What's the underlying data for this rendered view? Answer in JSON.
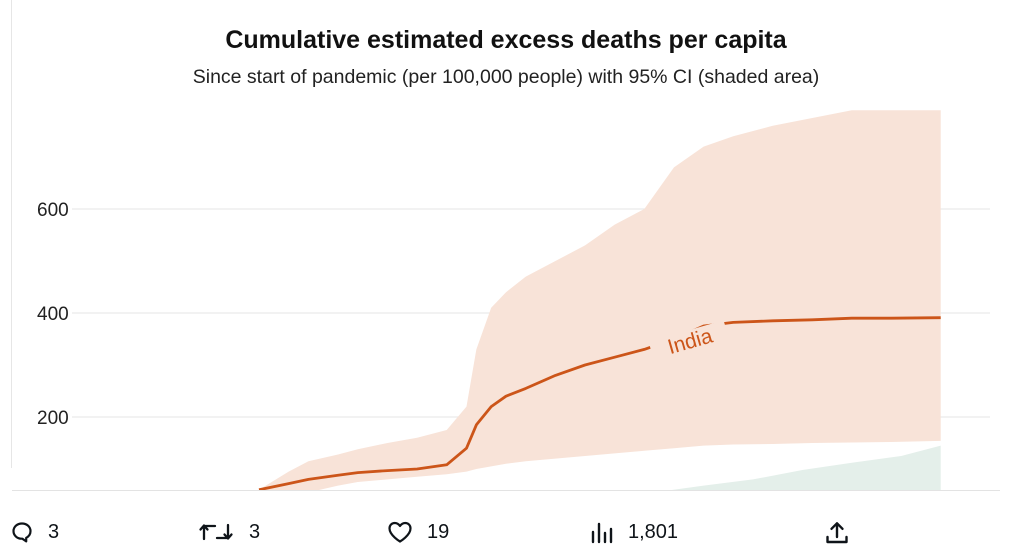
{
  "chart_data": {
    "type": "area",
    "title": "Cumulative estimated excess deaths per capita",
    "subtitle": "Since start of pandemic (per 100,000 people) with 95% CI (shaded area)",
    "y_ticks": [
      "200",
      "400",
      "600"
    ],
    "y_tick_values": [
      200,
      400,
      600
    ],
    "ylim": [
      -30,
      770
    ],
    "grid": true,
    "series": [
      {
        "name": "India",
        "color": "#cc5519",
        "band_color": "#f8e3d8",
        "x": [
          0.25,
          0.28,
          0.3,
          0.33,
          0.35,
          0.38,
          0.41,
          0.44,
          0.46,
          0.47,
          0.485,
          0.5,
          0.52,
          0.55,
          0.58,
          0.61,
          0.64,
          0.67,
          0.7,
          0.73,
          0.77,
          0.81,
          0.85,
          0.89,
          0.94
        ],
        "values": [
          60,
          72,
          80,
          88,
          93,
          97,
          100,
          108,
          140,
          185,
          220,
          240,
          255,
          280,
          300,
          315,
          330,
          350,
          375,
          382,
          385,
          387,
          390,
          390,
          391
        ],
        "lower": [
          30,
          40,
          55,
          68,
          75,
          80,
          85,
          90,
          95,
          100,
          105,
          110,
          115,
          120,
          125,
          130,
          135,
          140,
          145,
          147,
          148,
          150,
          151,
          152,
          154
        ],
        "upper": [
          60,
          95,
          115,
          128,
          138,
          150,
          160,
          175,
          220,
          330,
          410,
          440,
          470,
          500,
          530,
          570,
          600,
          680,
          720,
          740,
          760,
          775,
          790,
          790,
          790
        ],
        "label": "India"
      },
      {
        "color": "#e4efea",
        "x": [
          0.52,
          0.6,
          0.65,
          0.7,
          0.75,
          0.8,
          0.85,
          0.9,
          0.94
        ],
        "lower": [
          0,
          0,
          0,
          0,
          0,
          0,
          0,
          0,
          0
        ],
        "upper": [
          20,
          42,
          55,
          68,
          80,
          98,
          112,
          125,
          145
        ]
      }
    ]
  },
  "actions": {
    "reply_count": "3",
    "retweet_count": "3",
    "like_count": "19",
    "views_count": "1,801"
  }
}
